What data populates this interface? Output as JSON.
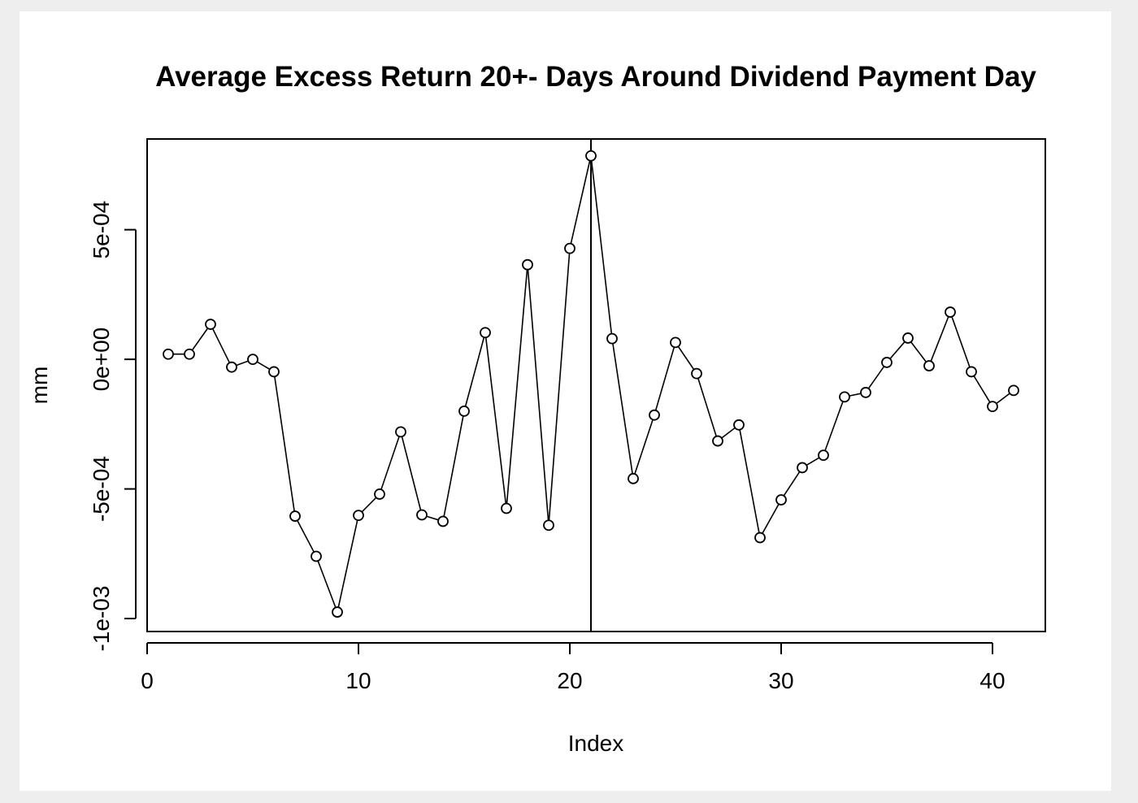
{
  "chart_data": {
    "type": "line",
    "title": "Average Excess Return 20+- Days Around Dividend Payment Day",
    "xlabel": "Index",
    "ylabel": "mm",
    "xlim": [
      0,
      42.5
    ],
    "ylim": [
      -0.00105,
      0.00085
    ],
    "x_ticks": [
      0,
      10,
      20,
      30,
      40
    ],
    "x_tick_labels": [
      "0",
      "10",
      "20",
      "30",
      "40"
    ],
    "y_ticks": [
      -0.001,
      -0.0005,
      0,
      0.0005
    ],
    "y_tick_labels": [
      "-1e-03",
      "-5e-04",
      "0e+00",
      "5e-04"
    ],
    "vline_x": 21,
    "grid": false,
    "marker": "open-circle",
    "series": [
      {
        "x": [
          1,
          2,
          3,
          4,
          5,
          6,
          7,
          8,
          9,
          10,
          11,
          12,
          13,
          14,
          15,
          16,
          17,
          18,
          19,
          20,
          21,
          22,
          23,
          24,
          25,
          26,
          27,
          28,
          29,
          30,
          31,
          32,
          33,
          34,
          35,
          36,
          37,
          38,
          39,
          40,
          41
        ],
        "values": [
          2e-05,
          2e-05,
          0.000135,
          -3e-05,
          0.0,
          -4.8e-05,
          -0.000605,
          -0.00076,
          -0.000975,
          -0.000602,
          -0.00052,
          -0.00028,
          -0.0006,
          -0.000625,
          -0.0002,
          0.000103,
          -0.000575,
          0.000365,
          -0.00064,
          0.000428,
          0.000785,
          8e-05,
          -0.00046,
          -0.000215,
          6.5e-05,
          -5.5e-05,
          -0.000315,
          -0.000253,
          -0.000688,
          -0.000542,
          -0.000418,
          -0.00037,
          -0.000145,
          -0.000128,
          -1.2e-05,
          8.2e-05,
          -2.5e-05,
          0.000182,
          -4.8e-05,
          -0.000182,
          -0.00012
        ]
      }
    ]
  }
}
